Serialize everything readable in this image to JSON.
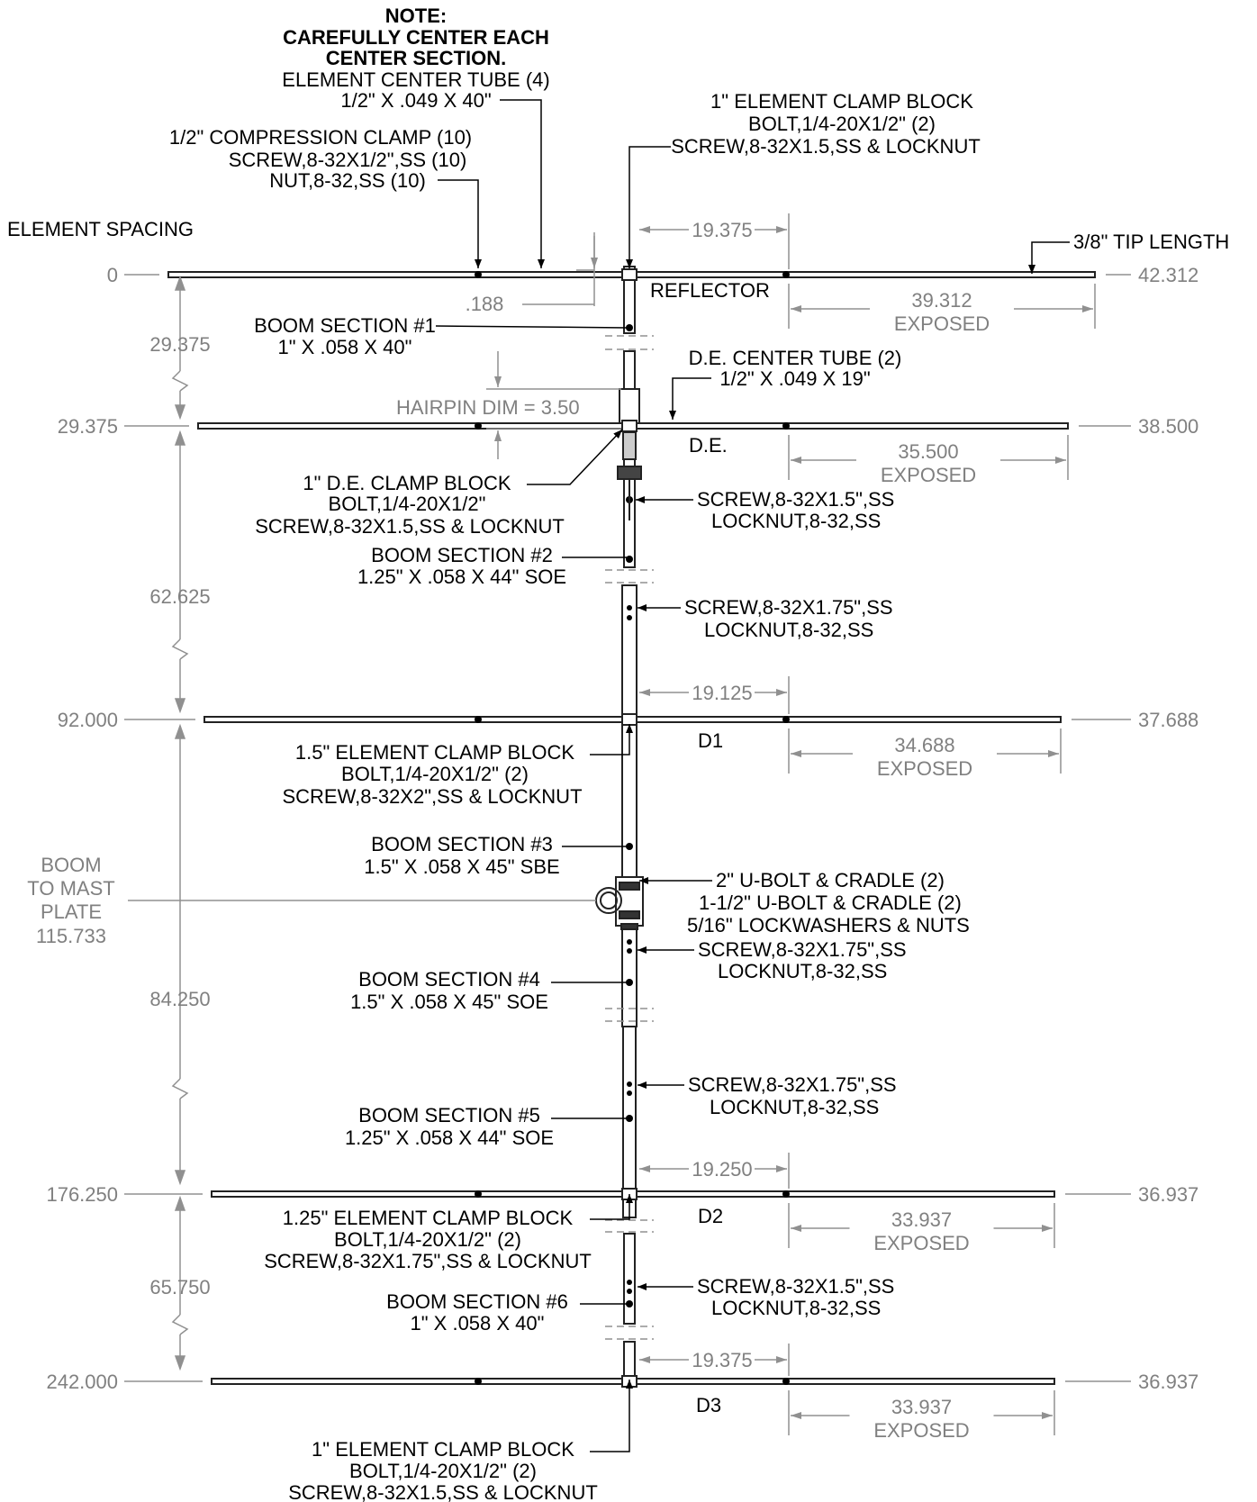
{
  "note": {
    "title": "NOTE:",
    "line1": "CAREFULLY CENTER EACH",
    "line2": "CENTER SECTION."
  },
  "element_center_tube": {
    "line1": "ELEMENT CENTER TUBE (4)",
    "line2": "1/2\" X .049 X 40\""
  },
  "compression_clamp": {
    "line1": "1/2\" COMPRESSION CLAMP (10)",
    "line2": "SCREW,8-32X1/2\",SS (10)",
    "line3": "NUT,8-32,SS (10)"
  },
  "top_clamp_block": {
    "line1": "1\" ELEMENT CLAMP BLOCK",
    "line2": "BOLT,1/4-20X1/2\" (2)",
    "line3": "SCREW,8-32X1.5,SS & LOCKNUT"
  },
  "element_spacing_label": "ELEMENT SPACING",
  "tip_length": "3/8\" TIP LENGTH",
  "elements": [
    {
      "name": "REFLECTOR",
      "position": "0",
      "length": "42.312",
      "exposed": "39.312",
      "exposed_label": "EXPOSED"
    },
    {
      "name": "D.E.",
      "position": "29.375",
      "length": "38.500",
      "exposed": "35.500",
      "exposed_label": "EXPOSED"
    },
    {
      "name": "D1",
      "position": "92.000",
      "length": "37.688",
      "exposed": "34.688",
      "exposed_label": "EXPOSED"
    },
    {
      "name": "D2",
      "position": "176.250",
      "length": "36.937",
      "exposed": "33.937",
      "exposed_label": "EXPOSED"
    },
    {
      "name": "D3",
      "position": "242.000",
      "length": "36.937",
      "exposed": "33.937",
      "exposed_label": "EXPOSED"
    }
  ],
  "half_lengths": [
    "19.375",
    "19.125",
    "19.250",
    "19.375"
  ],
  "spacings": [
    "29.375",
    "62.625",
    "84.250",
    "65.750"
  ],
  "dim_188": ".188",
  "hairpin": "HAIRPIN DIM = 3.50",
  "de_center_tube": {
    "line1": "D.E. CENTER TUBE (2)",
    "line2": "1/2\" X .049 X 19\""
  },
  "boom1": {
    "line1": "BOOM SECTION #1",
    "line2": "1\" X .058 X 40\""
  },
  "de_clamp_block": {
    "line1": "1\" D.E. CLAMP BLOCK",
    "line2": "BOLT,1/4-20X1/2\"",
    "line3": "SCREW,8-32X1.5,SS & LOCKNUT"
  },
  "screw_15_a": {
    "line1": "SCREW,8-32X1.5\",SS",
    "line2": "LOCKNUT,8-32,SS"
  },
  "boom2": {
    "line1": "BOOM SECTION #2",
    "line2": "1.25\" X .058 X 44\" SOE"
  },
  "screw_175_a": {
    "line1": "SCREW,8-32X1.75\",SS",
    "line2": "LOCKNUT,8-32,SS"
  },
  "clamp_15": {
    "line1": "1.5\" ELEMENT CLAMP BLOCK",
    "line2": "BOLT,1/4-20X1/2\" (2)",
    "line3": "SCREW,8-32X2\",SS & LOCKNUT"
  },
  "boom3": {
    "line1": "BOOM SECTION #3",
    "line2": "1.5\" X .058 X 45\" SBE"
  },
  "boom_to_mast": {
    "line1": "BOOM",
    "line2": "TO MAST",
    "line3": "PLATE",
    "value": "115.733"
  },
  "ubolt": {
    "line1": "2\" U-BOLT & CRADLE (2)",
    "line2": "1-1/2\" U-BOLT & CRADLE (2)",
    "line3": "5/16\" LOCKWASHERS & NUTS"
  },
  "screw_175_b": {
    "line1": "SCREW,8-32X1.75\",SS",
    "line2": "LOCKNUT,8-32,SS"
  },
  "boom4": {
    "line1": "BOOM SECTION #4",
    "line2": "1.5\" X .058 X 45\" SOE"
  },
  "screw_175_c": {
    "line1": "SCREW,8-32X1.75\",SS",
    "line2": "LOCKNUT,8-32,SS"
  },
  "boom5": {
    "line1": "BOOM SECTION #5",
    "line2": "1.25\" X .058 X 44\" SOE"
  },
  "clamp_125": {
    "line1": "1.25\" ELEMENT CLAMP BLOCK",
    "line2": "BOLT,1/4-20X1/2\" (2)",
    "line3": "SCREW,8-32X1.75\",SS & LOCKNUT"
  },
  "screw_15_b": {
    "line1": "SCREW,8-32X1.5\",SS",
    "line2": "LOCKNUT,8-32,SS"
  },
  "boom6": {
    "line1": "BOOM SECTION #6",
    "line2": "1\" X .058 X 40\""
  },
  "bottom_clamp_block": {
    "line1": "1\" ELEMENT CLAMP BLOCK",
    "line2": "BOLT,1/4-20X1/2\" (2)",
    "line3": "SCREW,8-32X1.5,SS & LOCKNUT"
  }
}
